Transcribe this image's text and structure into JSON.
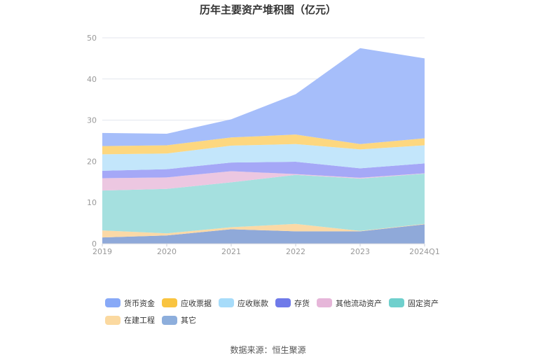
{
  "title": "历年主要资产堆积图（亿元）",
  "source": "数据来源：恒生聚源",
  "chart_data": {
    "type": "area",
    "stacked": true,
    "title": "历年主要资产堆积图（亿元）",
    "categories": [
      "2019",
      "2020",
      "2021",
      "2022",
      "2023",
      "2024Q1"
    ],
    "ylim": [
      0,
      50
    ],
    "yticks": [
      0,
      10,
      20,
      30,
      40,
      50
    ],
    "grid": true,
    "legend_position": "bottom",
    "series": [
      {
        "name": "其它",
        "color": "#8fa9d9",
        "values": [
          1.5,
          2.0,
          3.5,
          3.0,
          3.0,
          4.7
        ]
      },
      {
        "name": "在建工程",
        "color": "#fbd9a6",
        "values": [
          1.7,
          0.5,
          0.5,
          1.8,
          0.1,
          0.1
        ]
      },
      {
        "name": "固定资产",
        "color": "#a5e0df",
        "values": [
          9.7,
          10.8,
          10.9,
          11.9,
          12.7,
          12.2
        ]
      },
      {
        "name": "其他流动资产",
        "color": "#ecc7e1",
        "values": [
          3.0,
          2.8,
          2.7,
          0.2,
          0.2,
          0.1
        ]
      },
      {
        "name": "存货",
        "color": "#a5a8f7",
        "values": [
          1.8,
          2.0,
          2.1,
          3.0,
          2.3,
          2.4
        ]
      },
      {
        "name": "应收账款",
        "color": "#c3e6fb",
        "values": [
          4.0,
          3.8,
          4.1,
          4.3,
          4.6,
          4.4
        ]
      },
      {
        "name": "应收票据",
        "color": "#fdd77f",
        "values": [
          2.0,
          2.0,
          2.0,
          2.3,
          1.3,
          1.7
        ]
      },
      {
        "name": "货币资金",
        "color": "#a6befa",
        "values": [
          3.2,
          2.8,
          4.4,
          9.8,
          23.3,
          19.4
        ]
      }
    ]
  },
  "legend": [
    {
      "name": "货币资金",
      "color": "#88a9f7"
    },
    {
      "name": "应收票据",
      "color": "#f9c440"
    },
    {
      "name": "应收账款",
      "color": "#a7dcfa"
    },
    {
      "name": "存货",
      "color": "#6f7ae9"
    },
    {
      "name": "其他流动资产",
      "color": "#e6b6d9"
    },
    {
      "name": "固定资产",
      "color": "#6fd0cd"
    },
    {
      "name": "在建工程",
      "color": "#fbd9a0"
    },
    {
      "name": "其它",
      "color": "#8daedc"
    }
  ]
}
